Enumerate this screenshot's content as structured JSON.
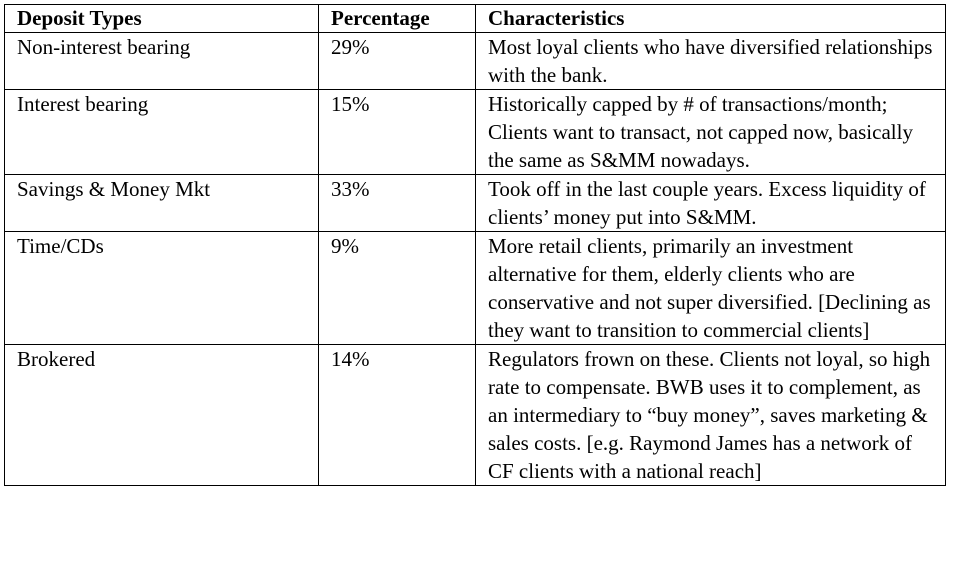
{
  "table": {
    "headers": [
      "Deposit Types",
      "Percentage",
      "Characteristics"
    ],
    "rows": [
      {
        "type": "Non-interest bearing",
        "percentage": "29%",
        "characteristics": "Most loyal clients who have diversified relationships with the bank."
      },
      {
        "type": "Interest bearing",
        "percentage": "15%",
        "characteristics": "Historically capped by # of transactions/month; Clients want to transact, not capped now, basically the same as S&MM nowadays."
      },
      {
        "type": "Savings & Money Mkt",
        "percentage": "33%",
        "characteristics": "Took off in the last couple years. Excess liquidity of clients’ money put into S&MM."
      },
      {
        "type": "Time/CDs",
        "percentage": "9%",
        "characteristics": "More retail clients, primarily an investment alternative for them, elderly clients who are conservative and not super diversified. [Declining as they want to transition to commercial clients]"
      },
      {
        "type": "Brokered",
        "percentage": "14%",
        "characteristics": "Regulators frown on these. Clients not loyal, so high rate to compensate. BWB uses it to complement, as an intermediary to “buy money”, saves marketing & sales costs. [e.g. Raymond James has a network of CF clients with a national reach]"
      }
    ]
  }
}
